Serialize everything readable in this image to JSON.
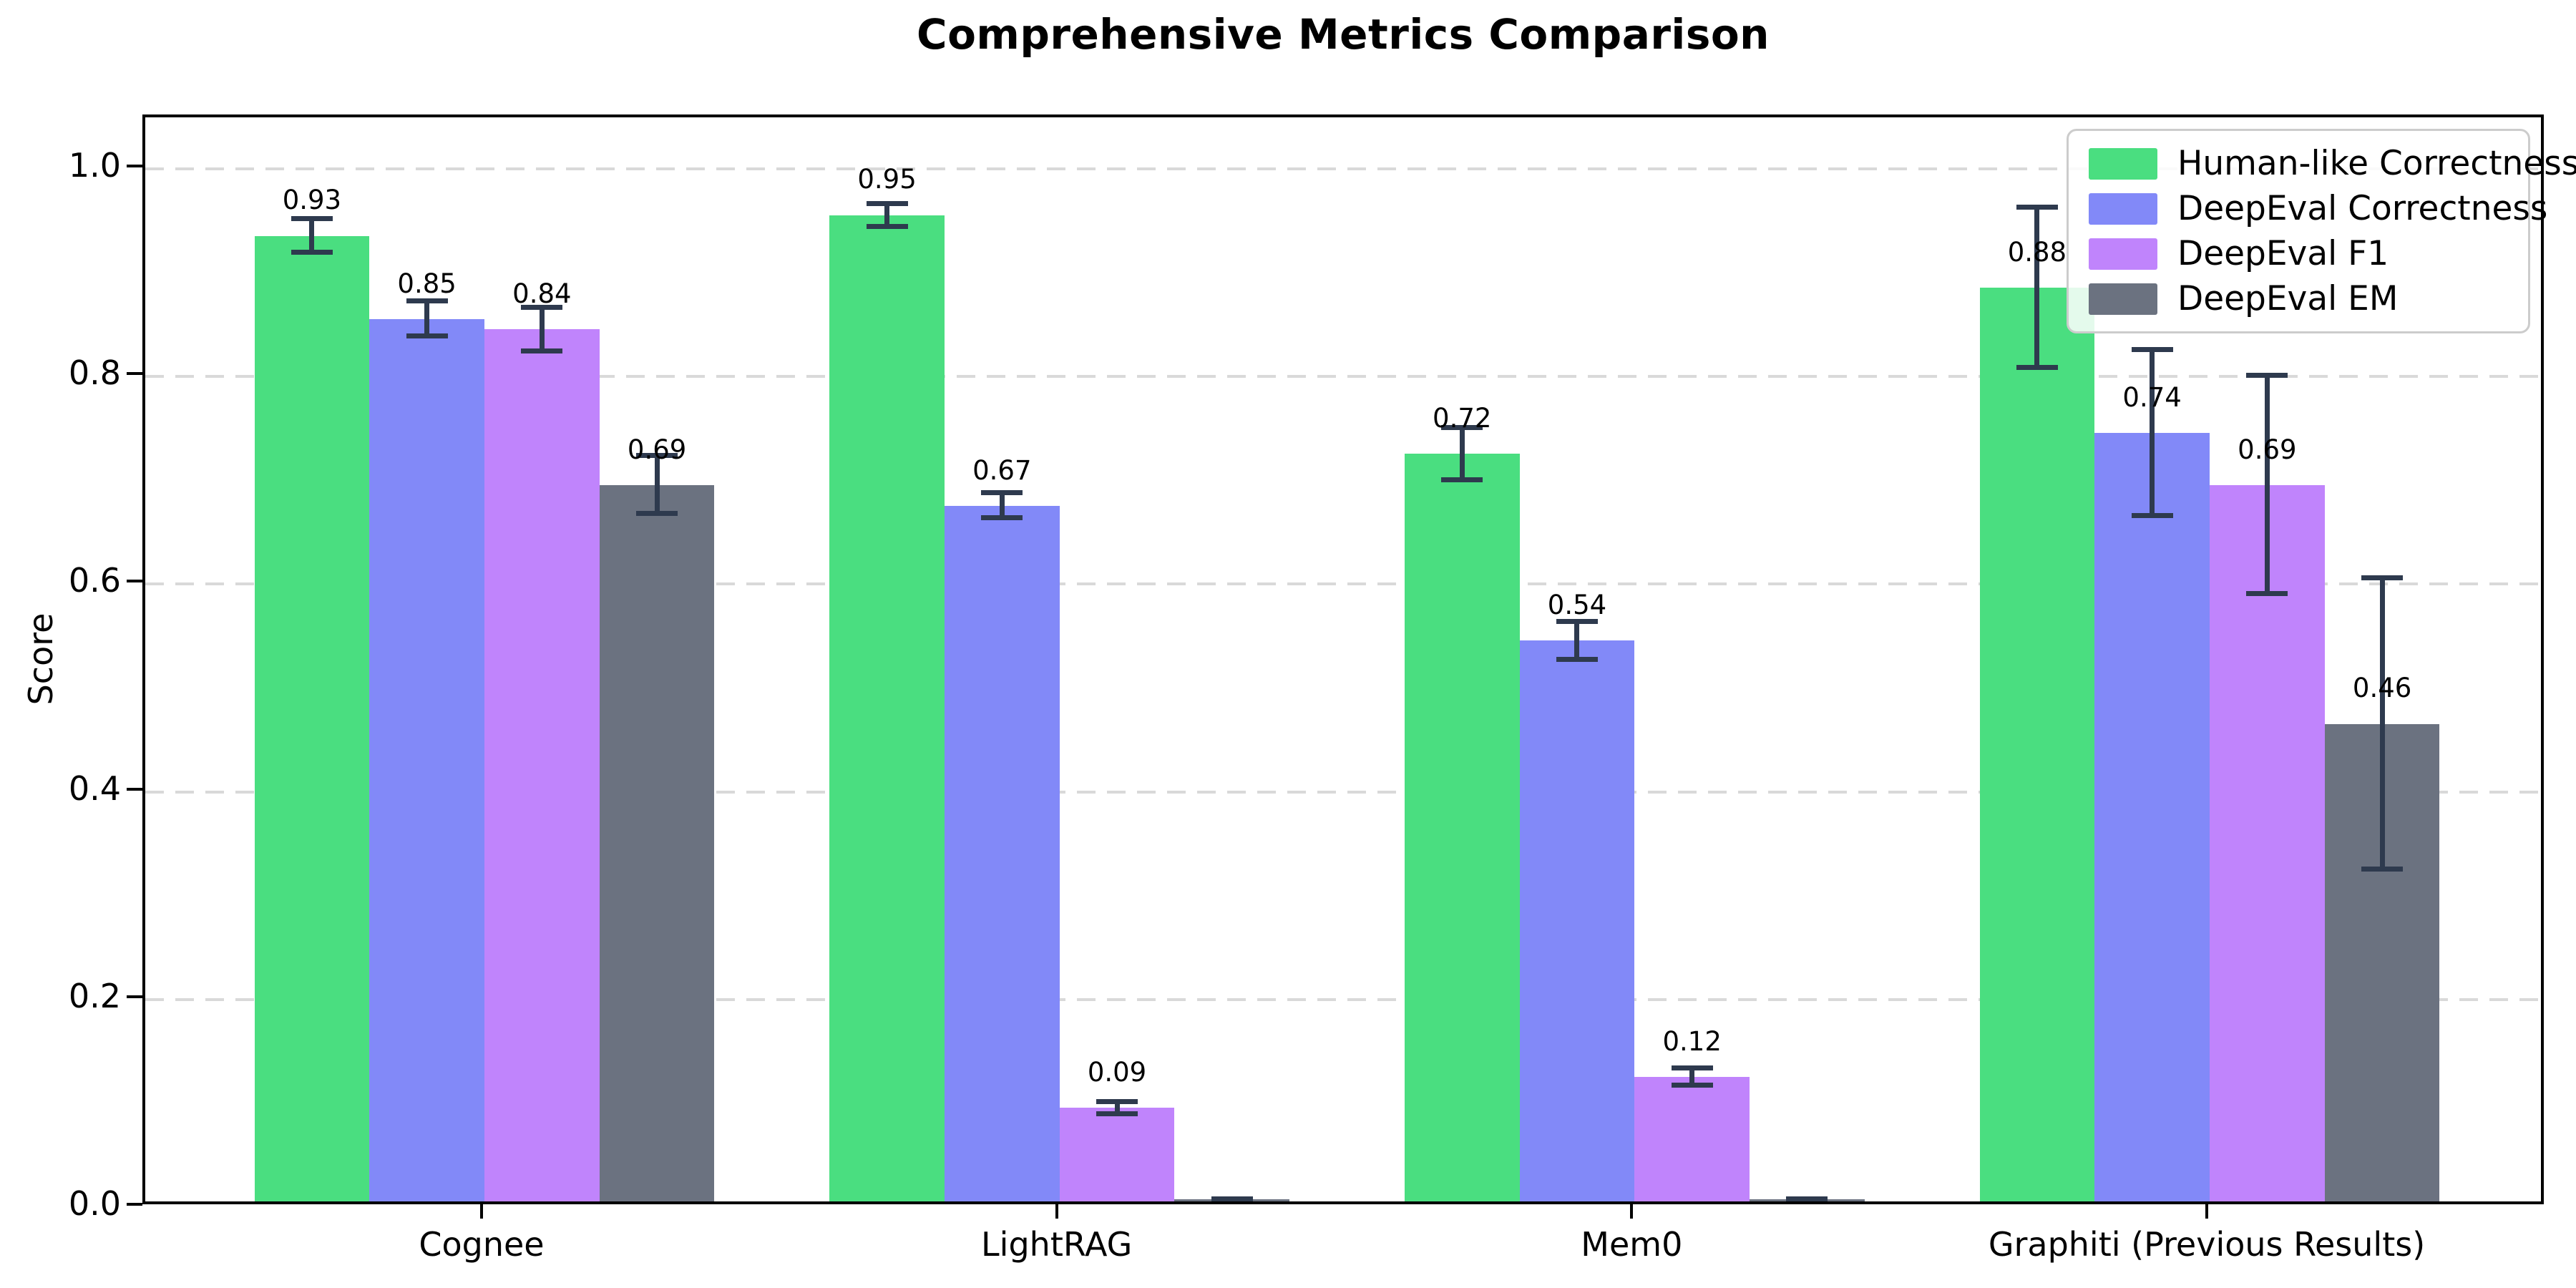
{
  "chart_data": {
    "type": "bar",
    "title": "Comprehensive Metrics Comparison",
    "ylabel": "Score",
    "xlabel": "",
    "categories": [
      "Cognee",
      "LightRAG",
      "Mem0",
      "Graphiti (Previous Results)"
    ],
    "series": [
      {
        "name": "Human-like Correctness",
        "color": "#4ade80",
        "values": [
          0.93,
          0.95,
          0.72,
          0.88
        ],
        "errors": [
          0.016,
          0.011,
          0.025,
          0.077
        ],
        "labels": [
          "0.93",
          "0.95",
          "0.72",
          "0.88"
        ]
      },
      {
        "name": "DeepEval Correctness",
        "color": "#8289f8",
        "values": [
          0.85,
          0.67,
          0.54,
          0.74
        ],
        "errors": [
          0.017,
          0.012,
          0.018,
          0.08
        ],
        "labels": [
          "0.85",
          "0.67",
          "0.54",
          "0.74"
        ]
      },
      {
        "name": "DeepEval F1",
        "color": "#c084fc",
        "values": [
          0.84,
          0.09,
          0.12,
          0.69
        ],
        "errors": [
          0.021,
          0.006,
          0.008,
          0.105
        ],
        "labels": [
          "0.84",
          "0.09",
          "0.12",
          "0.69"
        ]
      },
      {
        "name": "DeepEval EM",
        "color": "#6b7280",
        "values": [
          0.69,
          0.0,
          0.0,
          0.46
        ],
        "errors": [
          0.028,
          0.002,
          0.002,
          0.14
        ],
        "labels": [
          "0.69",
          "",
          "",
          "0.46"
        ]
      }
    ],
    "yticks": [
      "0.0",
      "0.2",
      "0.4",
      "0.6",
      "0.8",
      "1.0"
    ],
    "ylim": [
      0.0,
      1.05
    ],
    "grid": "horizontal-dashed",
    "legend_position": "upper right",
    "error_bar_color": "#2e3a4e",
    "grid_color": "#d9d9d9"
  }
}
